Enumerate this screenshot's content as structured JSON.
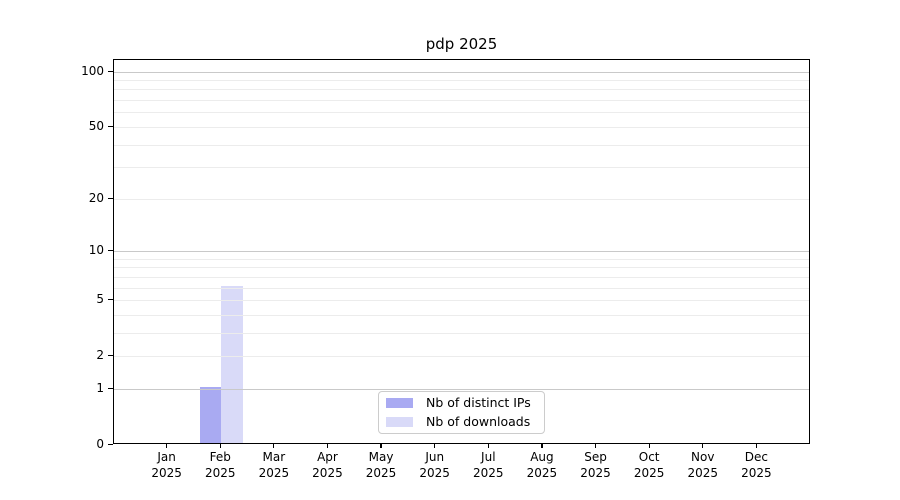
{
  "title": "pdp 2025",
  "colors": {
    "bar_distinct_ips": "#a9aaf2",
    "bar_downloads": "#d9daf8",
    "major_grid": "#c9c9c9",
    "minor_grid": "#ececec",
    "spine": "#000000",
    "legend_border": "#cccccc"
  },
  "legend": {
    "items": [
      "Nb of distinct IPs",
      "Nb of downloads"
    ]
  },
  "chart_data": {
    "type": "bar",
    "title": "pdp 2025",
    "xlabel": "",
    "ylabel": "",
    "grid": true,
    "legend_position": "lower center",
    "yscale": "log1p",
    "ylim": [
      0,
      115.5
    ],
    "yticks": [
      0,
      1,
      2,
      5,
      10,
      20,
      50,
      100
    ],
    "major_gridlines": [
      1,
      10,
      100
    ],
    "minor_gridlines": [
      2,
      3,
      4,
      5,
      6,
      7,
      8,
      9,
      20,
      30,
      40,
      50,
      60,
      70,
      80,
      90
    ],
    "categories": [
      {
        "month": "Jan",
        "year": "2025"
      },
      {
        "month": "Feb",
        "year": "2025"
      },
      {
        "month": "Mar",
        "year": "2025"
      },
      {
        "month": "Apr",
        "year": "2025"
      },
      {
        "month": "May",
        "year": "2025"
      },
      {
        "month": "Jun",
        "year": "2025"
      },
      {
        "month": "Jul",
        "year": "2025"
      },
      {
        "month": "Aug",
        "year": "2025"
      },
      {
        "month": "Sep",
        "year": "2025"
      },
      {
        "month": "Oct",
        "year": "2025"
      },
      {
        "month": "Nov",
        "year": "2025"
      },
      {
        "month": "Dec",
        "year": "2025"
      }
    ],
    "series": [
      {
        "name": "Nb of distinct IPs",
        "color": "#a9aaf2",
        "values": [
          0,
          1,
          0,
          0,
          0,
          0,
          0,
          0,
          0,
          0,
          0,
          0
        ]
      },
      {
        "name": "Nb of downloads",
        "color": "#d9daf8",
        "values": [
          0,
          6,
          0,
          0,
          0,
          0,
          0,
          0,
          0,
          0,
          0,
          0
        ]
      }
    ]
  }
}
